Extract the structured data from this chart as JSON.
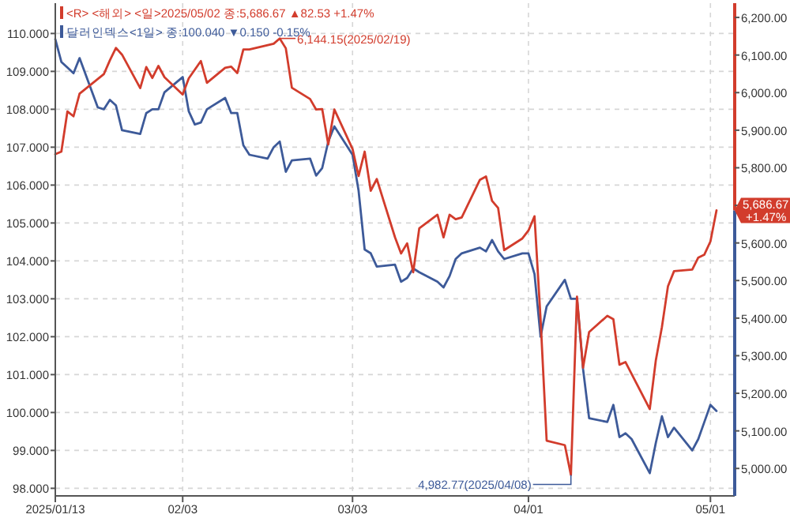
{
  "chart_data": {
    "type": "line",
    "series": [
      {
        "name": "<R> <해외> <일>2025/05/02 종:5,686.67  ▲82.53 +1.47%",
        "color": "#d23c2c",
        "axis": "y2",
        "x": [
          "2025-01-13",
          "2025-01-14",
          "2025-01-15",
          "2025-01-16",
          "2025-01-17",
          "2025-01-21",
          "2025-01-22",
          "2025-01-23",
          "2025-01-24",
          "2025-01-27",
          "2025-01-28",
          "2025-01-29",
          "2025-01-30",
          "2025-01-31",
          "2025-02-03",
          "2025-02-04",
          "2025-02-05",
          "2025-02-06",
          "2025-02-07",
          "2025-02-10",
          "2025-02-11",
          "2025-02-12",
          "2025-02-13",
          "2025-02-14",
          "2025-02-18",
          "2025-02-19",
          "2025-02-20",
          "2025-02-21",
          "2025-02-24",
          "2025-02-25",
          "2025-02-26",
          "2025-02-27",
          "2025-02-28",
          "2025-03-03",
          "2025-03-04",
          "2025-03-05",
          "2025-03-06",
          "2025-03-07",
          "2025-03-10",
          "2025-03-11",
          "2025-03-12",
          "2025-03-13",
          "2025-03-14",
          "2025-03-17",
          "2025-03-18",
          "2025-03-19",
          "2025-03-20",
          "2025-03-21",
          "2025-03-24",
          "2025-03-25",
          "2025-03-26",
          "2025-03-27",
          "2025-03-28",
          "2025-03-31",
          "2025-04-01",
          "2025-04-02",
          "2025-04-03",
          "2025-04-04",
          "2025-04-07",
          "2025-04-08",
          "2025-04-09",
          "2025-04-10",
          "2025-04-11",
          "2025-04-14",
          "2025-04-15",
          "2025-04-16",
          "2025-04-17",
          "2025-04-21",
          "2025-04-22",
          "2025-04-23",
          "2025-04-24",
          "2025-04-25",
          "2025-04-28",
          "2025-04-29",
          "2025-04-30",
          "2025-05-01",
          "2025-05-02"
        ],
        "values": [
          5836,
          5843,
          5950,
          5937,
          5997,
          6049,
          6086,
          6119,
          6101,
          6012,
          6068,
          6039,
          6071,
          6041,
          5995,
          6038,
          6061,
          6084,
          6026,
          6066,
          6069,
          6052,
          6115,
          6115,
          6130,
          6144.15,
          6118,
          6013,
          5983,
          5955,
          5956,
          5862,
          5955,
          5850,
          5778,
          5843,
          5739,
          5770,
          5615,
          5572,
          5599,
          5522,
          5639,
          5675,
          5615,
          5675,
          5663,
          5668,
          5768,
          5777,
          5712,
          5693,
          5581,
          5612,
          5633,
          5671,
          5397,
          5074,
          5062,
          4982.77,
          5457,
          5268,
          5363,
          5406,
          5397,
          5276,
          5283,
          5158,
          5288,
          5376,
          5485,
          5525,
          5529,
          5561,
          5569,
          5604,
          5686.67
        ]
      },
      {
        "name": "달러인덱스<1일> 종:100.040 ▼0.150 -0.15%",
        "color": "#3d5a99",
        "x": [
          "2025-01-13",
          "2025-01-14",
          "2025-01-15",
          "2025-01-16",
          "2025-01-17",
          "2025-01-20",
          "2025-01-21",
          "2025-01-22",
          "2025-01-23",
          "2025-01-24",
          "2025-01-27",
          "2025-01-28",
          "2025-01-29",
          "2025-01-30",
          "2025-01-31",
          "2025-02-03",
          "2025-02-04",
          "2025-02-05",
          "2025-02-06",
          "2025-02-07",
          "2025-02-10",
          "2025-02-11",
          "2025-02-12",
          "2025-02-13",
          "2025-02-14",
          "2025-02-17",
          "2025-02-18",
          "2025-02-19",
          "2025-02-20",
          "2025-02-21",
          "2025-02-24",
          "2025-02-25",
          "2025-02-26",
          "2025-02-27",
          "2025-02-28",
          "2025-03-03",
          "2025-03-04",
          "2025-03-05",
          "2025-03-06",
          "2025-03-07",
          "2025-03-10",
          "2025-03-11",
          "2025-03-12",
          "2025-03-13",
          "2025-03-14",
          "2025-03-17",
          "2025-03-18",
          "2025-03-19",
          "2025-03-20",
          "2025-03-21",
          "2025-03-24",
          "2025-03-25",
          "2025-03-26",
          "2025-03-27",
          "2025-03-28",
          "2025-03-31",
          "2025-04-01",
          "2025-04-02",
          "2025-04-03",
          "2025-04-04",
          "2025-04-07",
          "2025-04-08",
          "2025-04-09",
          "2025-04-10",
          "2025-04-11",
          "2025-04-14",
          "2025-04-15",
          "2025-04-16",
          "2025-04-17",
          "2025-04-18",
          "2025-04-21",
          "2025-04-22",
          "2025-04-23",
          "2025-04-24",
          "2025-04-25",
          "2025-04-28",
          "2025-04-29",
          "2025-04-30",
          "2025-05-01",
          "2025-05-02"
        ],
        "values": [
          109.85,
          109.25,
          109.1,
          108.95,
          109.35,
          108.05,
          108.0,
          108.25,
          108.1,
          107.45,
          107.35,
          107.9,
          108.0,
          108.0,
          108.45,
          108.85,
          107.95,
          107.6,
          107.65,
          108.0,
          108.3,
          107.9,
          107.9,
          107.05,
          106.8,
          106.7,
          107.0,
          107.15,
          106.35,
          106.65,
          106.7,
          106.25,
          106.45,
          107.15,
          107.55,
          106.8,
          105.85,
          104.3,
          104.2,
          103.85,
          103.9,
          103.45,
          103.55,
          103.8,
          103.7,
          103.45,
          103.3,
          103.6,
          104.05,
          104.2,
          104.35,
          104.25,
          104.55,
          104.25,
          104.05,
          104.2,
          104.2,
          103.65,
          102.0,
          102.8,
          103.5,
          103.0,
          103.0,
          101.15,
          99.85,
          99.75,
          100.2,
          99.35,
          99.45,
          99.3,
          98.4,
          99.2,
          99.9,
          99.35,
          99.6,
          99.0,
          99.3,
          99.75,
          100.2,
          100.04
        ]
      }
    ],
    "xlim": [
      "2025-01-13",
      "2025-05-05"
    ],
    "xticks": [
      {
        "value": "2025-01-13",
        "label": "2025/01/13"
      },
      {
        "value": "2025-02-03",
        "label": "02/03"
      },
      {
        "value": "2025-03-03",
        "label": "03/03"
      },
      {
        "value": "2025-04-01",
        "label": "04/01"
      },
      {
        "value": "2025-05-01",
        "label": "05/01"
      }
    ],
    "ylim": [
      97.8,
      110.8
    ],
    "yticks": [
      {
        "value": 98,
        "label": "98.000"
      },
      {
        "value": 99,
        "label": "99.000"
      },
      {
        "value": 100,
        "label": "100.000"
      },
      {
        "value": 101,
        "label": "101.000"
      },
      {
        "value": 102,
        "label": "102.000"
      },
      {
        "value": 103,
        "label": "103.000"
      },
      {
        "value": 104,
        "label": "104.000"
      },
      {
        "value": 105,
        "label": "105.000"
      },
      {
        "value": 106,
        "label": "106.000"
      },
      {
        "value": 107,
        "label": "107.000"
      },
      {
        "value": 108,
        "label": "108.000"
      },
      {
        "value": 109,
        "label": "109.000"
      },
      {
        "value": 110,
        "label": "110.000"
      }
    ],
    "y2lim": [
      4927,
      6238
    ],
    "y2ticks": [
      {
        "value": 5000,
        "label": "5,000.00"
      },
      {
        "value": 5100,
        "label": "5,100.00"
      },
      {
        "value": 5200,
        "label": "5,200.00"
      },
      {
        "value": 5300,
        "label": "5,300.00"
      },
      {
        "value": 5400,
        "label": "5,400.00"
      },
      {
        "value": 5500,
        "label": "5,500.00"
      },
      {
        "value": 5600,
        "label": "5,600.00"
      },
      {
        "value": 5700,
        "label": null
      },
      {
        "value": 5800,
        "label": "5,800.00"
      },
      {
        "value": 5900,
        "label": "5,900.00"
      },
      {
        "value": 6000,
        "label": "6,000.00"
      },
      {
        "value": 6100,
        "label": "6,100.00"
      },
      {
        "value": 6200,
        "label": "6,200.00"
      }
    ],
    "annotations": [
      "6,144.15(2025/02/19)",
      "4,982.77(2025/04/08)",
      "5,686.67 +1.47%"
    ],
    "grid": true,
    "legend": "top left",
    "line_style": "solid",
    "marker": "none"
  }
}
